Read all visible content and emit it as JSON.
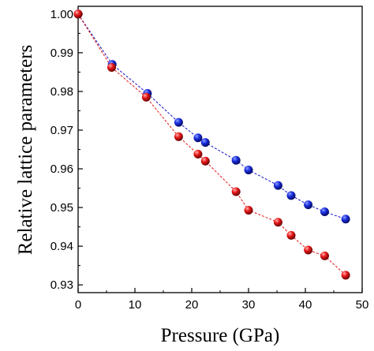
{
  "chart_data": {
    "type": "scatter",
    "title": "",
    "xlabel": "Pressure (GPa)",
    "ylabel": "Relative lattice parameters",
    "xlim": [
      0,
      50
    ],
    "ylim": [
      0.928,
      1.002
    ],
    "x_ticks": [
      "0",
      "10",
      "20",
      "30",
      "40",
      "50"
    ],
    "y_ticks": [
      "0.93",
      "0.94",
      "0.95",
      "0.96",
      "0.97",
      "0.98",
      "0.99",
      "1.00"
    ],
    "grid": false,
    "legend": "none",
    "series": [
      {
        "color": "#1010c8",
        "line_style": "dashed",
        "x": [
          0,
          6.0,
          12.2,
          17.7,
          21.1,
          22.4,
          27.8,
          30.0,
          35.2,
          37.5,
          40.5,
          43.4,
          47.1
        ],
        "y": [
          1.0,
          0.987,
          0.9795,
          0.972,
          0.968,
          0.9668,
          0.9622,
          0.9597,
          0.9557,
          0.9531,
          0.9507,
          0.9489,
          0.947
        ]
      },
      {
        "color": "#e01818",
        "line_style": "dashed",
        "x": [
          0,
          5.9,
          12.0,
          17.7,
          21.1,
          22.4,
          27.8,
          30.0,
          35.2,
          37.5,
          40.5,
          43.4,
          47.1
        ],
        "y": [
          1.0,
          0.9862,
          0.9785,
          0.9683,
          0.9638,
          0.962,
          0.9541,
          0.9493,
          0.9462,
          0.9428,
          0.939,
          0.9375,
          0.9325
        ]
      }
    ]
  }
}
